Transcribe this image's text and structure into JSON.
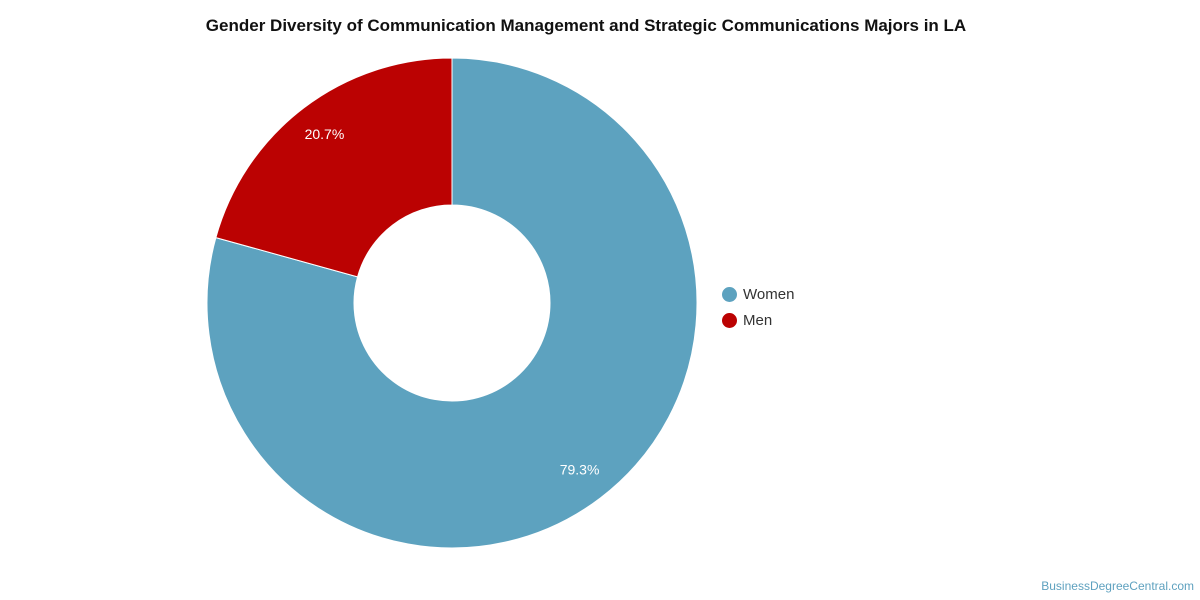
{
  "chart_data": {
    "type": "pie",
    "variant": "donut",
    "title": "Gender Diversity of Communication Management and Strategic Communications Majors in LA",
    "slices": [
      {
        "label": "Women",
        "value": 79.3,
        "display": "79.3%",
        "color": "#5da2bf"
      },
      {
        "label": "Men",
        "value": 20.7,
        "display": "20.7%",
        "color": "#bb0202"
      }
    ],
    "legend_position": "right"
  },
  "footer": {
    "credit": "BusinessDegreeCentral.com"
  }
}
